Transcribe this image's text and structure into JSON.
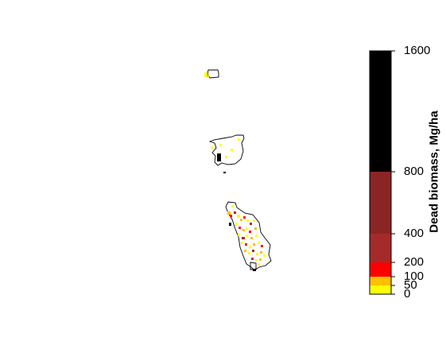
{
  "legend": {
    "title": "Dead biomass, Mg/ha",
    "breaks": [
      {
        "label": "0",
        "value": 0
      },
      {
        "label": "50",
        "value": 50
      },
      {
        "label": "100",
        "value": 100
      },
      {
        "label": "200",
        "value": 200
      },
      {
        "label": "400",
        "value": 400
      },
      {
        "label": "800",
        "value": 800
      },
      {
        "label": "1600",
        "value": 1600
      }
    ],
    "classes": [
      {
        "from": 0,
        "to": 50,
        "color": "#ffff00"
      },
      {
        "from": 50,
        "to": 100,
        "color": "#ffc000"
      },
      {
        "from": 100,
        "to": 200,
        "color": "#ff0000"
      },
      {
        "from": 200,
        "to": 400,
        "color": "#a52a2a"
      },
      {
        "from": 400,
        "to": 800,
        "color": "#8b2525"
      },
      {
        "from": 800,
        "to": 1600,
        "color": "#000000"
      }
    ]
  }
}
